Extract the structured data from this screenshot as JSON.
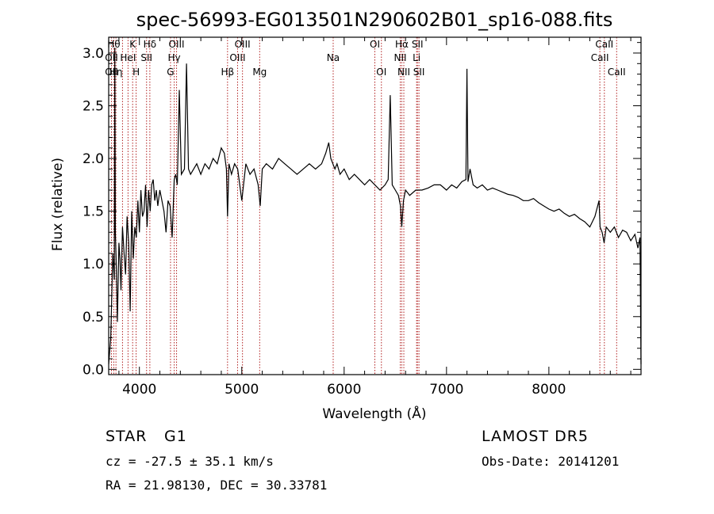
{
  "chart_data": {
    "type": "line",
    "title": "spec-56993-EG013501N290602B01_sp16-088.fits",
    "xlabel": "Wavelength (Å)",
    "ylabel": "Flux (relative)",
    "xlim": [
      3700,
      8900
    ],
    "ylim": [
      -0.05,
      3.15
    ],
    "xticks": [
      {
        "value": 4000,
        "label": "4000"
      },
      {
        "value": 5000,
        "label": "5000"
      },
      {
        "value": 6000,
        "label": "6000"
      },
      {
        "value": 7000,
        "label": "7000"
      },
      {
        "value": 8000,
        "label": "8000"
      }
    ],
    "yticks": [
      {
        "value": 0.0,
        "label": "0.0"
      },
      {
        "value": 0.5,
        "label": "0.5"
      },
      {
        "value": 1.0,
        "label": "1.0"
      },
      {
        "value": 1.5,
        "label": "1.5"
      },
      {
        "value": 2.0,
        "label": "2.0"
      },
      {
        "value": 2.5,
        "label": "2.5"
      },
      {
        "value": 3.0,
        "label": "3.0"
      }
    ],
    "line_color": "#000000",
    "marker_color": "#b22222",
    "series": [
      {
        "x": [
          3700,
          3720,
          3740,
          3755,
          3760,
          3765,
          3775,
          3785,
          3800,
          3810,
          3820,
          3835,
          3850,
          3865,
          3880,
          3895,
          3910,
          3925,
          3940,
          3955,
          3970,
          3985,
          4000,
          4015,
          4030,
          4045,
          4060,
          4075,
          4090,
          4105,
          4120,
          4135,
          4150,
          4165,
          4180,
          4200,
          4220,
          4240,
          4260,
          4280,
          4300,
          4320,
          4340,
          4355,
          4370,
          4390,
          4410,
          4440,
          4460,
          4480,
          4500,
          4530,
          4560,
          4600,
          4640,
          4680,
          4720,
          4760,
          4800,
          4830,
          4850,
          4861,
          4875,
          4900,
          4930,
          4960,
          5000,
          5040,
          5080,
          5120,
          5160,
          5180,
          5200,
          5240,
          5300,
          5360,
          5420,
          5480,
          5540,
          5600,
          5660,
          5720,
          5780,
          5820,
          5850,
          5870,
          5890,
          5910,
          5930,
          5960,
          6000,
          6050,
          6100,
          6150,
          6200,
          6250,
          6300,
          6350,
          6400,
          6430,
          6450,
          6470,
          6500,
          6530,
          6550,
          6563,
          6580,
          6600,
          6640,
          6700,
          6760,
          6820,
          6880,
          6940,
          7000,
          7050,
          7100,
          7150,
          7190,
          7200,
          7210,
          7230,
          7260,
          7300,
          7350,
          7400,
          7450,
          7500,
          7550,
          7600,
          7650,
          7700,
          7750,
          7800,
          7850,
          7900,
          7950,
          8000,
          8050,
          8100,
          8150,
          8200,
          8250,
          8300,
          8350,
          8400,
          8450,
          8490,
          8500,
          8520,
          8540,
          8560,
          8600,
          8640,
          8680,
          8720,
          8760,
          8800,
          8840,
          8870,
          8890,
          8900
        ],
        "y": [
          0.05,
          0.3,
          1.1,
          0.85,
          3.05,
          1.3,
          0.95,
          0.45,
          1.2,
          1.05,
          0.75,
          1.35,
          1.1,
          0.9,
          1.45,
          1.2,
          0.55,
          1.5,
          1.05,
          1.35,
          1.25,
          1.6,
          1.3,
          1.7,
          1.45,
          1.5,
          1.75,
          1.35,
          1.7,
          1.5,
          1.75,
          1.8,
          1.6,
          1.7,
          1.55,
          1.7,
          1.6,
          1.5,
          1.3,
          1.6,
          1.55,
          1.25,
          1.8,
          1.85,
          1.75,
          2.65,
          1.85,
          1.9,
          2.9,
          1.9,
          1.85,
          1.9,
          1.95,
          1.85,
          1.95,
          1.9,
          2.0,
          1.95,
          2.1,
          2.05,
          1.9,
          1.45,
          1.95,
          1.85,
          1.95,
          1.9,
          1.6,
          1.95,
          1.85,
          1.9,
          1.75,
          1.55,
          1.9,
          1.95,
          1.9,
          2.0,
          1.95,
          1.9,
          1.85,
          1.9,
          1.95,
          1.9,
          1.95,
          2.05,
          2.15,
          2.0,
          1.95,
          1.9,
          1.95,
          1.85,
          1.9,
          1.8,
          1.85,
          1.8,
          1.75,
          1.8,
          1.75,
          1.7,
          1.75,
          1.8,
          2.6,
          1.75,
          1.7,
          1.65,
          1.55,
          1.35,
          1.6,
          1.7,
          1.65,
          1.7,
          1.7,
          1.72,
          1.75,
          1.75,
          1.7,
          1.75,
          1.72,
          1.78,
          1.8,
          2.85,
          1.78,
          1.9,
          1.75,
          1.72,
          1.75,
          1.7,
          1.72,
          1.7,
          1.68,
          1.66,
          1.65,
          1.63,
          1.6,
          1.6,
          1.62,
          1.58,
          1.55,
          1.52,
          1.5,
          1.52,
          1.48,
          1.45,
          1.47,
          1.43,
          1.4,
          1.35,
          1.45,
          1.6,
          1.35,
          1.3,
          1.2,
          1.35,
          1.3,
          1.35,
          1.25,
          1.32,
          1.3,
          1.22,
          1.28,
          1.15,
          1.25,
          0.05
        ]
      }
    ],
    "line_markers": [
      {
        "wavelength": 3750,
        "label": "Hθ",
        "row": 0
      },
      {
        "wavelength": 3727,
        "label": "OII",
        "row": 1
      },
      {
        "wavelength": 3727,
        "label": "OII",
        "row": 2
      },
      {
        "wavelength": 3771,
        "label": "Hη",
        "row": 2
      },
      {
        "wavelength": 3835,
        "label": "",
        "row": -1
      },
      {
        "wavelength": 3889,
        "label": "HeI",
        "row": 1
      },
      {
        "wavelength": 3934,
        "label": "K",
        "row": 0
      },
      {
        "wavelength": 3968,
        "label": "H",
        "row": 2
      },
      {
        "wavelength": 4070,
        "label": "SII",
        "row": 1
      },
      {
        "wavelength": 4102,
        "label": "Hδ",
        "row": 0
      },
      {
        "wavelength": 4304,
        "label": "G",
        "row": 2
      },
      {
        "wavelength": 4340,
        "label": "Hγ",
        "row": 1
      },
      {
        "wavelength": 4363,
        "label": "OIII",
        "row": 0
      },
      {
        "wavelength": 4861,
        "label": "Hβ",
        "row": 2
      },
      {
        "wavelength": 4959,
        "label": "OIII",
        "row": 1
      },
      {
        "wavelength": 5007,
        "label": "OIII",
        "row": 0
      },
      {
        "wavelength": 5175,
        "label": "Mg",
        "row": 2
      },
      {
        "wavelength": 5893,
        "label": "Na",
        "row": 1
      },
      {
        "wavelength": 6300,
        "label": "OI",
        "row": 0
      },
      {
        "wavelength": 6364,
        "label": "OI",
        "row": 2
      },
      {
        "wavelength": 6548,
        "label": "NII",
        "row": 1
      },
      {
        "wavelength": 6563,
        "label": "Hα",
        "row": 0
      },
      {
        "wavelength": 6583,
        "label": "NII",
        "row": 2
      },
      {
        "wavelength": 6708,
        "label": "Li",
        "row": 1
      },
      {
        "wavelength": 6716,
        "label": "SII",
        "row": 0
      },
      {
        "wavelength": 6731,
        "label": "SII",
        "row": 2
      },
      {
        "wavelength": 8498,
        "label": "CaII",
        "row": 1
      },
      {
        "wavelength": 8542,
        "label": "CaII",
        "row": 0
      },
      {
        "wavelength": 8662,
        "label": "CaII",
        "row": 2
      }
    ]
  },
  "info": {
    "object_class": "STAR",
    "subclass": "G1",
    "survey": "LAMOST DR5",
    "redshift": "cz = -27.5 ± 35.1 km/s",
    "obs_date": "Obs-Date: 20141201",
    "coords": "RA =  21.98130, DEC =  30.33781"
  }
}
